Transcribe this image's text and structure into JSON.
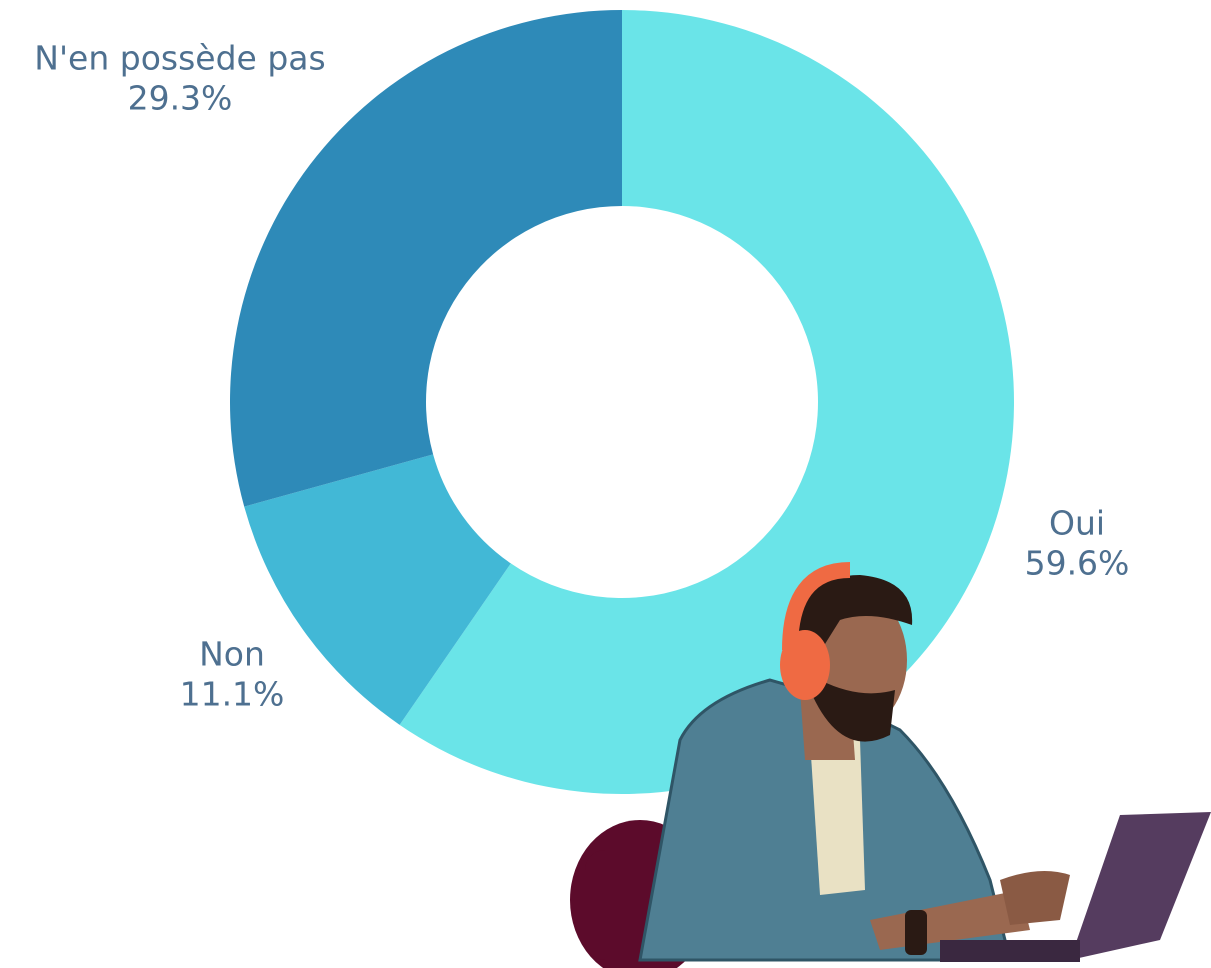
{
  "chart_data": {
    "type": "donut",
    "categories": [
      "Oui",
      "Non",
      "N'en possède pas"
    ],
    "values": [
      59.6,
      11.1,
      29.3
    ],
    "value_labels": [
      "59.6%",
      "11.1%",
      "29.3%"
    ],
    "colors": [
      "#6ae4e8",
      "#42b8d6",
      "#2e8ab8"
    ]
  }
}
